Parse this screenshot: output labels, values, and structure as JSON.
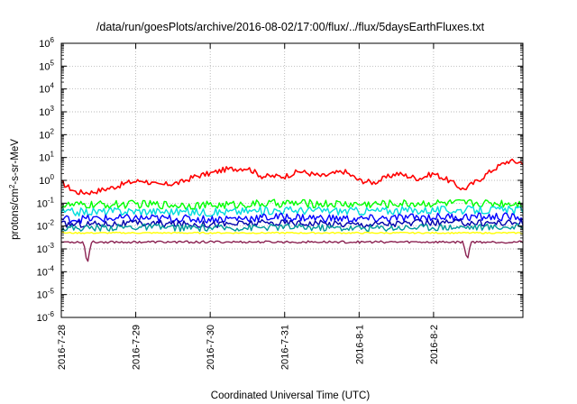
{
  "chart_data": {
    "type": "line",
    "title": "/data/run/goesPlots/archive/2016-08-02/17:00/flux/../flux/5daysEarthFluxes.txt",
    "xlabel": "Coordinated Universal Time (UTC)",
    "ylabel_base": "protons/cm",
    "ylabel_sup": "2",
    "ylabel_rest": "-s-sr-MeV",
    "yscale": "log",
    "ylim": [
      1e-06,
      1000000.0
    ],
    "xlim_days": [
      0,
      6.2
    ],
    "grid": true,
    "x_ticks": [
      {
        "day": 0,
        "label": "2016-7-28"
      },
      {
        "day": 1,
        "label": "2016-7-29"
      },
      {
        "day": 2,
        "label": "2016-7-30"
      },
      {
        "day": 3,
        "label": "2016-7-31"
      },
      {
        "day": 4,
        "label": "2016-8-1"
      },
      {
        "day": 5,
        "label": "2016-8-2"
      }
    ],
    "y_ticks": [
      {
        "exp": 6,
        "label": "10",
        "sup": "6"
      },
      {
        "exp": 5,
        "label": "10",
        "sup": "5"
      },
      {
        "exp": 4,
        "label": "10",
        "sup": "4"
      },
      {
        "exp": 3,
        "label": "10",
        "sup": "3"
      },
      {
        "exp": 2,
        "label": "10",
        "sup": "2"
      },
      {
        "exp": 1,
        "label": "10",
        "sup": "1"
      },
      {
        "exp": 0,
        "label": "10",
        "sup": "0"
      },
      {
        "exp": -1,
        "label": "10",
        "sup": "-1"
      },
      {
        "exp": -2,
        "label": "10",
        "sup": "-2"
      },
      {
        "exp": -3,
        "label": "10",
        "sup": "-3"
      },
      {
        "exp": -4,
        "label": "10",
        "sup": "-4"
      },
      {
        "exp": -5,
        "label": "10",
        "sup": "-5"
      },
      {
        "exp": -6,
        "label": "10",
        "sup": "-6"
      }
    ],
    "series": [
      {
        "color": "#ff0000",
        "x": [
          0,
          0.2,
          0.4,
          0.7,
          0.9,
          1.1,
          1.3,
          1.6,
          1.8,
          2.0,
          2.2,
          2.5,
          2.7,
          3.0,
          3.2,
          3.5,
          3.8,
          4.0,
          4.2,
          4.5,
          4.8,
          5.0,
          5.2,
          5.4,
          5.6,
          5.8,
          6.0,
          6.2
        ],
        "y": [
          0.8,
          0.3,
          0.3,
          0.5,
          0.8,
          1.0,
          0.6,
          0.8,
          1.5,
          2.0,
          3.0,
          3.5,
          1.5,
          1.5,
          2.5,
          1.5,
          2.5,
          1.0,
          0.8,
          2.0,
          1.2,
          2.0,
          1.0,
          0.4,
          1.0,
          3.0,
          7.0,
          6.0
        ]
      },
      {
        "color": "#00ff00",
        "x": [
          0,
          1,
          2,
          3,
          4,
          5,
          6.2
        ],
        "y": [
          0.08,
          0.09,
          0.08,
          0.1,
          0.09,
          0.1,
          0.1
        ]
      },
      {
        "color": "#00dddd",
        "x": [
          0,
          1,
          2,
          3,
          4,
          5,
          6.2
        ],
        "y": [
          0.04,
          0.045,
          0.04,
          0.05,
          0.045,
          0.05,
          0.05
        ]
      },
      {
        "color": "#0000ff",
        "x": [
          0,
          1,
          2,
          3,
          4,
          5,
          6.2
        ],
        "y": [
          0.02,
          0.022,
          0.02,
          0.025,
          0.02,
          0.025,
          0.025
        ]
      },
      {
        "color": "#0000aa",
        "x": [
          0,
          1,
          2,
          3,
          4,
          5,
          6.2
        ],
        "y": [
          0.012,
          0.013,
          0.012,
          0.014,
          0.012,
          0.014,
          0.014
        ]
      },
      {
        "color": "#009999",
        "x": [
          0,
          1,
          2,
          3,
          4,
          5,
          6.2
        ],
        "y": [
          0.008,
          0.009,
          0.008,
          0.009,
          0.008,
          0.009,
          0.009
        ]
      },
      {
        "color": "#ffff00",
        "x": [
          0,
          1,
          2,
          3,
          4,
          5,
          6.2
        ],
        "y": [
          0.005,
          0.005,
          0.005,
          0.005,
          0.005,
          0.005,
          0.005
        ]
      },
      {
        "color": "#8b2252",
        "x": [
          0,
          0.3,
          0.35,
          0.4,
          1,
          2,
          3,
          4,
          5,
          5.4,
          5.45,
          5.5,
          6.2
        ],
        "y": [
          0.002,
          0.002,
          0.0002,
          0.002,
          0.002,
          0.002,
          0.002,
          0.002,
          0.002,
          0.002,
          0.0003,
          0.002,
          0.002
        ]
      }
    ]
  }
}
